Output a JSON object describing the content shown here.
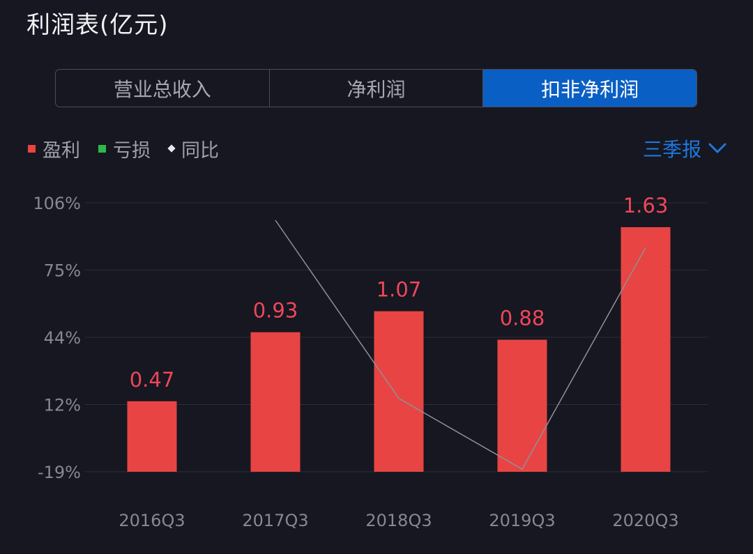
{
  "header": {
    "title": "利润表(亿元)"
  },
  "tabs": [
    {
      "label": "营业总收入",
      "active": false
    },
    {
      "label": "净利润",
      "active": false
    },
    {
      "label": "扣非净利润",
      "active": true
    }
  ],
  "legend": {
    "items": [
      {
        "label": "盈利",
        "color": "#e84444",
        "icon": "square"
      },
      {
        "label": "亏损",
        "color": "#2fb84a",
        "icon": "square"
      },
      {
        "label": "同比",
        "color": "#e8e8ec",
        "icon": "diamond"
      }
    ]
  },
  "period_select": {
    "label": "三季报",
    "icon": "chevron-down-icon"
  },
  "colors": {
    "background": "#161720",
    "accent": "#0a5fc4",
    "profit": "#e84444",
    "loss": "#2fb84a",
    "value_label": "#f0465a",
    "line": "#8f9099",
    "axis_text": "#878893",
    "grid": "#2c2e38"
  },
  "chart_data": {
    "type": "bar",
    "categories": [
      "2016Q3",
      "2017Q3",
      "2018Q3",
      "2019Q3",
      "2020Q3"
    ],
    "series": [
      {
        "name": "盈利",
        "type": "bar",
        "values": [
          0.47,
          0.93,
          1.07,
          0.88,
          1.63
        ]
      },
      {
        "name": "同比",
        "type": "line",
        "values": [
          null,
          97.9,
          15.1,
          -17.8,
          85.2
        ],
        "unit": "%"
      }
    ],
    "value_labels": [
      "0.47",
      "0.93",
      "1.07",
      "0.88",
      "1.63"
    ],
    "y_ticks": [
      "106%",
      "75%",
      "44%",
      "12%",
      "-19%"
    ],
    "ylim_percent": [
      -19,
      106
    ],
    "grid": true,
    "legend_position": "top-left"
  }
}
